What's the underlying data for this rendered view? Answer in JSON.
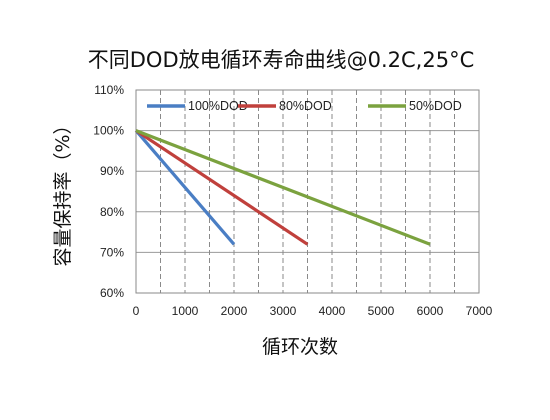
{
  "chart_data": {
    "type": "line",
    "title": "不同DOD放电循环寿命曲线@0.2C,25°C",
    "xlabel": "循环次数",
    "ylabel": "容量保持率（%）",
    "xlim": [
      0,
      7000
    ],
    "ylim": [
      60,
      110
    ],
    "x_ticks": [
      0,
      1000,
      2000,
      3000,
      4000,
      5000,
      6000,
      7000
    ],
    "x_tick_labels": [
      "0",
      "1000",
      "2000",
      "3000",
      "4000",
      "5000",
      "6000",
      "7000"
    ],
    "y_ticks": [
      60,
      70,
      80,
      90,
      100,
      110
    ],
    "y_tick_labels": [
      "60%",
      "70%",
      "80%",
      "90%",
      "100%",
      "110%"
    ],
    "grid": true,
    "legend_position": "top-center",
    "series": [
      {
        "name": "100%DOD",
        "color": "#4a7ec4",
        "x": [
          0,
          2000
        ],
        "y": [
          100,
          72
        ]
      },
      {
        "name": "80%DOD",
        "color": "#c0403c",
        "x": [
          0,
          3500
        ],
        "y": [
          100,
          72
        ]
      },
      {
        "name": "50%DOD",
        "color": "#7ba23f",
        "x": [
          0,
          6000
        ],
        "y": [
          100,
          72
        ]
      }
    ]
  }
}
